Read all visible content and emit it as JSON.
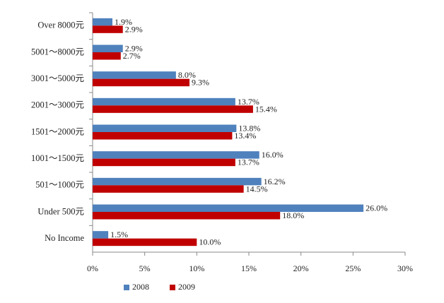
{
  "chart_data": {
    "type": "hbar",
    "categories": [
      "Over 8000元",
      "5001～8000元",
      "3001～5000元",
      "2001～3000元",
      "1501～2000元",
      "1001～1500元",
      "501～1000元",
      "Under 500元",
      "No Income"
    ],
    "series": [
      {
        "name": "2008",
        "color": "#4f81bd",
        "values": [
          1.9,
          2.9,
          8.0,
          13.7,
          13.8,
          16.0,
          16.2,
          26.0,
          1.5
        ],
        "value_labels": [
          "1.9%",
          "2.9%",
          "8.0%",
          "13.7%",
          "13.8%",
          "16.0%",
          "16.2%",
          "26.0%",
          "1.5%"
        ]
      },
      {
        "name": "2009",
        "color": "#c00000",
        "values": [
          2.9,
          2.7,
          9.3,
          15.4,
          13.4,
          13.7,
          14.5,
          18.0,
          10.0
        ],
        "value_labels": [
          "2.9%",
          "2.7%",
          "9.3%",
          "15.4%",
          "13.4%",
          "13.7%",
          "14.5%",
          "18.0%",
          "10.0%"
        ]
      }
    ],
    "xlim": [
      0,
      30
    ],
    "xticks": [
      {
        "value": 0,
        "label": "0%"
      },
      {
        "value": 5,
        "label": "5%"
      },
      {
        "value": 10,
        "label": "10%"
      },
      {
        "value": 15,
        "label": "15%"
      },
      {
        "value": 20,
        "label": "20%"
      },
      {
        "value": 25,
        "label": "25%"
      },
      {
        "value": 30,
        "label": "30%"
      }
    ],
    "legend": "bottom"
  }
}
